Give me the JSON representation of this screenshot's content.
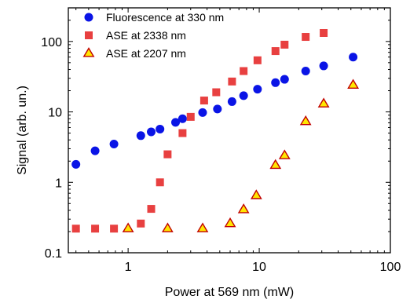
{
  "chart_data": {
    "type": "scatter",
    "xscale": "log",
    "yscale": "log",
    "xlim": [
      0.35,
      100
    ],
    "ylim": [
      0.1,
      300
    ],
    "xlabel": "Power at  569 nm (mW)",
    "ylabel": "Signal (arb. un.)",
    "xticks": [
      {
        "value": 1,
        "label": "1"
      },
      {
        "value": 10,
        "label": "10"
      },
      {
        "value": 100,
        "label": "100"
      }
    ],
    "yticks": [
      {
        "value": 0.1,
        "label": "0.1"
      },
      {
        "value": 1,
        "label": "1"
      },
      {
        "value": 10,
        "label": "10"
      },
      {
        "value": 100,
        "label": "100"
      }
    ],
    "grid": false,
    "legend_position": "top-left",
    "series": [
      {
        "name": "Fluorescence at 330 nm",
        "marker": "circle",
        "color": "#0a14e6",
        "points": [
          [
            0.4,
            1.8
          ],
          [
            0.56,
            2.8
          ],
          [
            0.78,
            3.5
          ],
          [
            1.25,
            4.6
          ],
          [
            1.5,
            5.2
          ],
          [
            1.75,
            5.7
          ],
          [
            2.3,
            7.1
          ],
          [
            2.6,
            8.0
          ],
          [
            3.7,
            9.8
          ],
          [
            4.8,
            11.0
          ],
          [
            6.2,
            14.0
          ],
          [
            7.6,
            17.0
          ],
          [
            9.7,
            21.0
          ],
          [
            13.3,
            26.0
          ],
          [
            15.6,
            29.0
          ],
          [
            22.6,
            38.0
          ],
          [
            31.0,
            45.0
          ],
          [
            52.0,
            60.0
          ]
        ]
      },
      {
        "name": "ASE at 2338 nm",
        "marker": "square",
        "color": "#e84040",
        "points": [
          [
            0.4,
            0.22
          ],
          [
            0.56,
            0.22
          ],
          [
            0.78,
            0.22
          ],
          [
            1.25,
            0.26
          ],
          [
            1.5,
            0.42
          ],
          [
            1.75,
            1.0
          ],
          [
            2.0,
            2.5
          ],
          [
            2.6,
            5.0
          ],
          [
            3.0,
            8.5
          ],
          [
            3.8,
            14.5
          ],
          [
            4.7,
            19.0
          ],
          [
            6.2,
            27.0
          ],
          [
            7.6,
            38.0
          ],
          [
            9.7,
            54.0
          ],
          [
            13.3,
            73.0
          ],
          [
            15.6,
            90.0
          ],
          [
            22.6,
            116.0
          ],
          [
            31.0,
            132.0
          ]
        ]
      },
      {
        "name": "ASE at 2207 nm",
        "marker": "triangle",
        "color": "#ffe600",
        "edge": "#c00000",
        "points": [
          [
            1.0,
            0.22
          ],
          [
            2.0,
            0.22
          ],
          [
            3.7,
            0.22
          ],
          [
            6.0,
            0.26
          ],
          [
            7.6,
            0.41
          ],
          [
            9.5,
            0.65
          ],
          [
            13.3,
            1.75
          ],
          [
            15.6,
            2.4
          ],
          [
            22.6,
            7.3
          ],
          [
            31.0,
            13.0
          ],
          [
            52.0,
            24.0
          ]
        ]
      }
    ]
  }
}
